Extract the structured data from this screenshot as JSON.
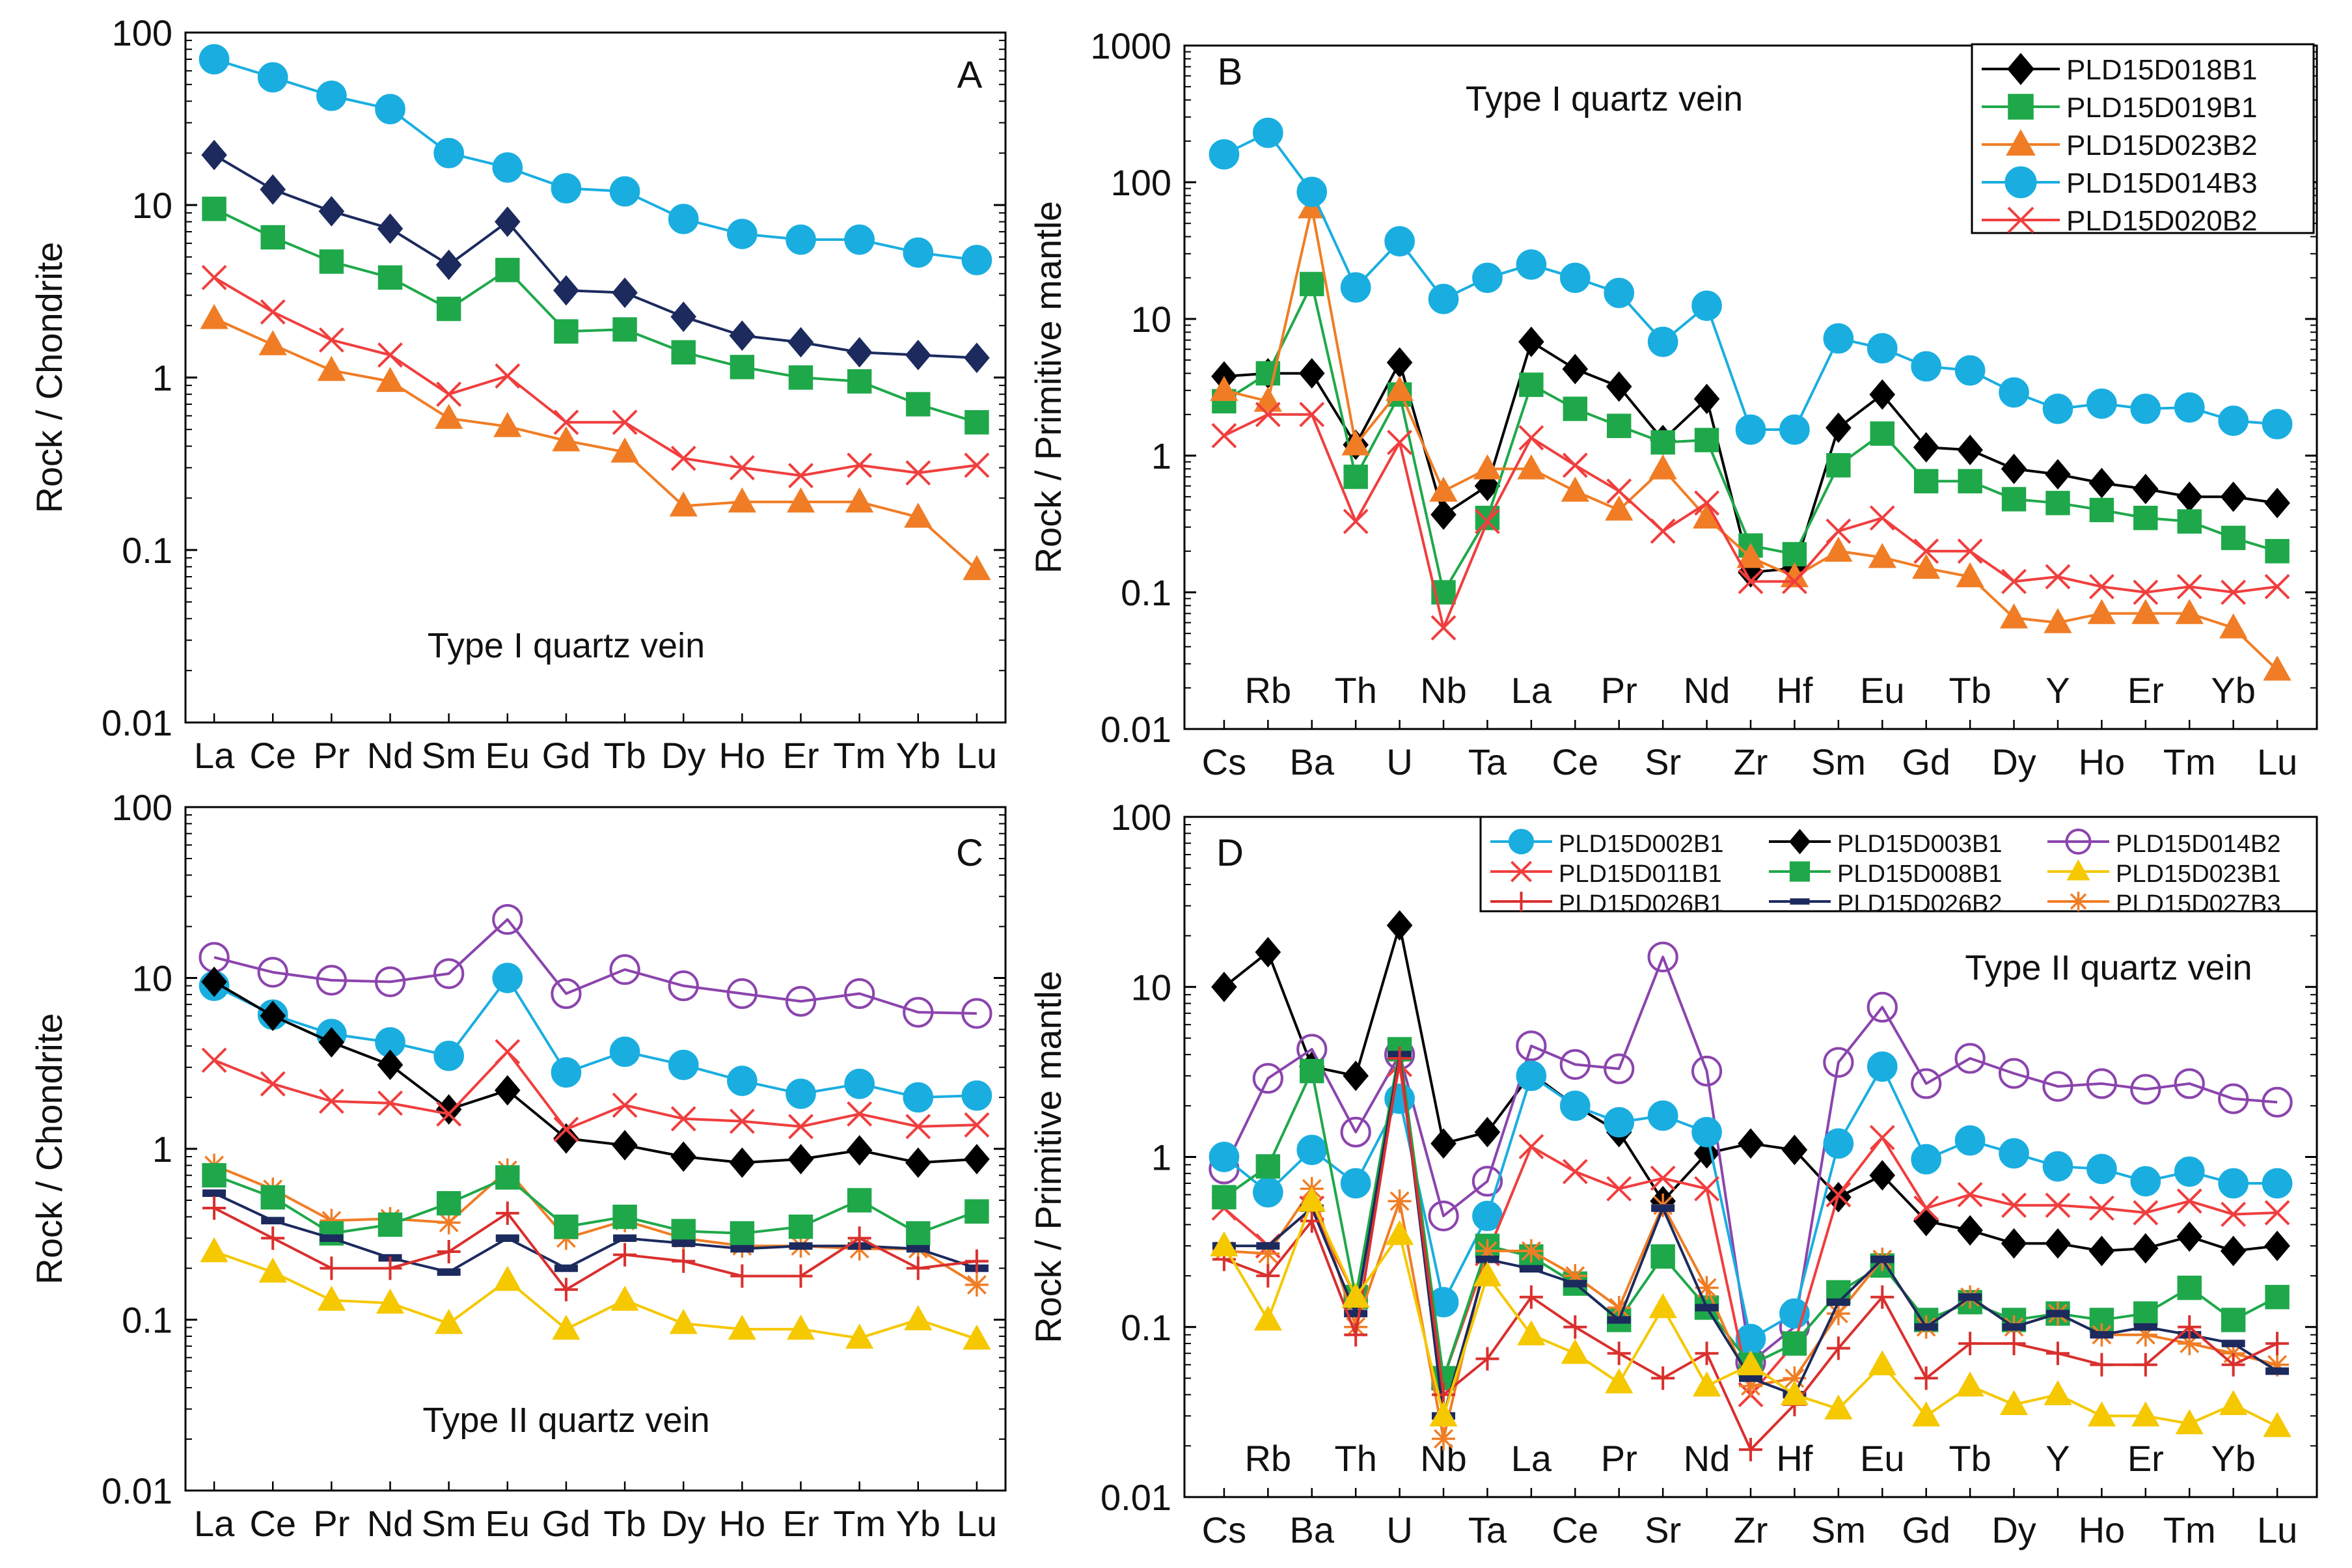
{
  "chart_data": [
    {
      "panel": "A",
      "type": "line",
      "scale": "log",
      "ylabel": "Rock / Chondrite",
      "ylim": [
        0.01,
        100
      ],
      "yticks": [
        "0.01",
        "0.1",
        "1",
        "10",
        "100"
      ],
      "note": "Type I quartz vein",
      "categories": [
        "La",
        "Ce",
        "Pr",
        "Nd",
        "Sm",
        "Eu",
        "Gd",
        "Tb",
        "Dy",
        "Ho",
        "Er",
        "Tm",
        "Yb",
        "Lu"
      ],
      "series": [
        {
          "name": "PLD15D014B3",
          "color": "#1aaee0",
          "marker": "circle",
          "values": [
            70,
            55,
            43,
            36,
            20,
            16.5,
            12.5,
            12,
            8.3,
            6.8,
            6.3,
            6.3,
            5.3,
            4.8
          ]
        },
        {
          "name": "PLD15D018B1",
          "color": "#1c2a5e",
          "marker": "diamond",
          "values": [
            19.5,
            12.3,
            9.2,
            7.3,
            4.5,
            8,
            3.2,
            3.1,
            2.25,
            1.75,
            1.6,
            1.4,
            1.35,
            1.3
          ]
        },
        {
          "name": "PLD15D019B1",
          "color": "#1fa84a",
          "marker": "square",
          "values": [
            9.5,
            6.5,
            4.7,
            3.8,
            2.5,
            4.2,
            1.85,
            1.9,
            1.4,
            1.15,
            1,
            0.95,
            0.7,
            0.55
          ]
        },
        {
          "name": "PLD15D020B2",
          "color": "#f03e3e",
          "marker": "x",
          "values": [
            3.8,
            2.4,
            1.65,
            1.35,
            0.8,
            1.02,
            0.55,
            0.55,
            0.34,
            0.3,
            0.27,
            0.31,
            0.28,
            0.31
          ]
        },
        {
          "name": "PLD15D023B2",
          "color": "#f07d25",
          "marker": "triangle",
          "values": [
            2.2,
            1.55,
            1.1,
            0.95,
            0.58,
            0.52,
            0.43,
            0.37,
            0.18,
            0.19,
            0.19,
            0.19,
            0.155,
            0.077
          ]
        }
      ]
    },
    {
      "panel": "B",
      "type": "line",
      "scale": "log",
      "ylabel": "Rock / Primitive mantle",
      "ylim": [
        0.01,
        1000
      ],
      "yticks": [
        "0.01",
        "0.1",
        "1",
        "10",
        "100",
        "1000"
      ],
      "note": "Type I quartz vein",
      "categories": [
        "Cs",
        "Rb",
        "Ba",
        "Th",
        "U",
        "Nb",
        "Ta",
        "La",
        "Ce",
        "Pr",
        "Sr",
        "Nd",
        "Zr",
        "Hf",
        "Sm",
        "Eu",
        "Gd",
        "Tb",
        "Dy",
        "Y",
        "Ho",
        "Er",
        "Tm",
        "Yb",
        "Lu"
      ],
      "bottom_labels": [
        "Cs",
        "Ba",
        "U",
        "Ta",
        "Ce",
        "Sr",
        "Zr",
        "Sm",
        "Gd",
        "Dy",
        "Ho",
        "Tm",
        "Lu"
      ],
      "inner_labels": [
        "Rb",
        "Th",
        "Nb",
        "La",
        "Pr",
        "Nd",
        "Hf",
        "Eu",
        "Tb",
        "Y",
        "Er",
        "Yb"
      ],
      "legend": [
        "PLD15D018B1",
        "PLD15D019B1",
        "PLD15D023B2",
        "PLD15D014B3",
        "PLD15D020B2"
      ],
      "series": [
        {
          "name": "PLD15D018B1",
          "color": "#000000",
          "marker": "diamond",
          "values": [
            3.8,
            4,
            4,
            1.2,
            4.8,
            0.37,
            0.6,
            6.8,
            4.3,
            3.2,
            1.3,
            2.6,
            0.14,
            0.15,
            1.6,
            2.8,
            1.15,
            1.1,
            0.8,
            0.73,
            0.63,
            0.57,
            0.5,
            0.5,
            0.45
          ]
        },
        {
          "name": "PLD15D019B1",
          "color": "#1fa84a",
          "marker": "square",
          "values": [
            2.5,
            4,
            18,
            0.7,
            2.8,
            0.1,
            0.35,
            3.3,
            2.2,
            1.65,
            1.25,
            1.3,
            0.22,
            0.19,
            0.85,
            1.45,
            0.65,
            0.65,
            0.48,
            0.45,
            0.4,
            0.35,
            0.33,
            0.25,
            0.2
          ]
        },
        {
          "name": "PLD15D023B2",
          "color": "#f07d25",
          "marker": "triangle",
          "values": [
            3,
            2.5,
            65,
            1.2,
            3,
            0.55,
            0.8,
            0.8,
            0.55,
            0.4,
            0.8,
            0.35,
            0.18,
            0.13,
            0.2,
            0.18,
            0.15,
            0.13,
            0.065,
            0.06,
            0.07,
            0.07,
            0.07,
            0.055,
            0.027
          ]
        },
        {
          "name": "PLD15D014B3",
          "color": "#1aaee0",
          "marker": "circle",
          "values": [
            160,
            230,
            85,
            17,
            37,
            14,
            20,
            25,
            20,
            15.5,
            6.8,
            12.5,
            1.55,
            1.55,
            7.2,
            6.1,
            4.5,
            4.2,
            2.9,
            2.2,
            2.4,
            2.2,
            2.25,
            1.8,
            1.7
          ]
        },
        {
          "name": "PLD15D020B2",
          "color": "#f03e3e",
          "marker": "x",
          "values": [
            1.4,
            2,
            2,
            0.33,
            1.25,
            0.055,
            0.33,
            1.35,
            0.85,
            0.55,
            0.28,
            0.45,
            0.12,
            0.12,
            0.28,
            0.35,
            0.2,
            0.2,
            0.12,
            0.13,
            0.11,
            0.1,
            0.11,
            0.1,
            0.11
          ]
        }
      ]
    },
    {
      "panel": "C",
      "type": "line",
      "scale": "log",
      "ylabel": "Rock / Chondrite",
      "ylim": [
        0.01,
        100
      ],
      "yticks": [
        "0.01",
        "0.1",
        "1",
        "10",
        "100"
      ],
      "note": "Type II quartz vein",
      "categories": [
        "La",
        "Ce",
        "Pr",
        "Nd",
        "Sm",
        "Eu",
        "Gd",
        "Tb",
        "Dy",
        "Ho",
        "Er",
        "Tm",
        "Yb",
        "Lu"
      ],
      "series": [
        {
          "name": "PLD15D014B2",
          "color": "#8b44ad",
          "marker": "circle-open",
          "values": [
            13.2,
            10.8,
            9.7,
            9.5,
            10.6,
            22,
            8.1,
            11.2,
            9,
            8.1,
            7.3,
            8.1,
            6.3,
            6.2
          ]
        },
        {
          "name": "PLD15D002B1",
          "color": "#1aaee0",
          "marker": "circle",
          "values": [
            9,
            6.1,
            4.7,
            4.2,
            3.5,
            10,
            2.8,
            3.7,
            3.1,
            2.5,
            2.1,
            2.4,
            2,
            2.05
          ]
        },
        {
          "name": "PLD15D003B1",
          "color": "#000000",
          "marker": "diamond",
          "values": [
            9.5,
            6,
            4.2,
            3.1,
            1.7,
            2.2,
            1.15,
            1.05,
            0.9,
            0.83,
            0.87,
            0.98,
            0.83,
            0.87
          ]
        },
        {
          "name": "PLD15D011B1",
          "color": "#f03e3e",
          "marker": "x",
          "values": [
            3.3,
            2.4,
            1.9,
            1.85,
            1.6,
            3.7,
            1.3,
            1.8,
            1.5,
            1.45,
            1.35,
            1.6,
            1.35,
            1.38
          ]
        },
        {
          "name": "PLD15D027B3",
          "color": "#f07d25",
          "marker": "star",
          "values": [
            0.8,
            0.58,
            0.38,
            0.39,
            0.37,
            0.75,
            0.3,
            0.38,
            0.3,
            0.27,
            0.27,
            0.26,
            0.26,
            0.16
          ]
        },
        {
          "name": "PLD15D008B1",
          "color": "#1fa84a",
          "marker": "square",
          "values": [
            0.7,
            0.52,
            0.32,
            0.36,
            0.48,
            0.68,
            0.35,
            0.4,
            0.33,
            0.32,
            0.35,
            0.5,
            0.32,
            0.43
          ]
        },
        {
          "name": "PLD15D026B2",
          "color": "#1c2a5e",
          "marker": "dash",
          "values": [
            0.55,
            0.38,
            0.3,
            0.23,
            0.19,
            0.3,
            0.2,
            0.3,
            0.28,
            0.26,
            0.27,
            0.27,
            0.26,
            0.2
          ]
        },
        {
          "name": "PLD15D026B1",
          "color": "#d9302e",
          "marker": "plus",
          "values": [
            0.45,
            0.3,
            0.2,
            0.2,
            0.25,
            0.42,
            0.15,
            0.24,
            0.22,
            0.18,
            0.18,
            0.3,
            0.2,
            0.22
          ]
        },
        {
          "name": "PLD15D023B1",
          "color": "#f5c800",
          "marker": "triangle",
          "values": [
            0.25,
            0.19,
            0.13,
            0.125,
            0.095,
            0.17,
            0.088,
            0.13,
            0.095,
            0.088,
            0.088,
            0.078,
            0.1,
            0.077
          ]
        }
      ]
    },
    {
      "panel": "D",
      "type": "line",
      "scale": "log",
      "ylabel": "Rock / Primitive mantle",
      "ylim": [
        0.01,
        100
      ],
      "yticks": [
        "0.01",
        "0.1",
        "1",
        "10",
        "100"
      ],
      "note": "Type II quartz vein",
      "categories": [
        "Cs",
        "Rb",
        "Ba",
        "Th",
        "U",
        "Nb",
        "Ta",
        "La",
        "Ce",
        "Pr",
        "Sr",
        "Nd",
        "Zr",
        "Hf",
        "Sm",
        "Eu",
        "Gd",
        "Tb",
        "Dy",
        "Y",
        "Ho",
        "Er",
        "Tm",
        "Yb",
        "Lu"
      ],
      "bottom_labels": [
        "Cs",
        "Ba",
        "U",
        "Ta",
        "Ce",
        "Sr",
        "Zr",
        "Sm",
        "Gd",
        "Dy",
        "Ho",
        "Tm",
        "Lu"
      ],
      "inner_labels": [
        "Rb",
        "Th",
        "Nb",
        "La",
        "Pr",
        "Nd",
        "Hf",
        "Eu",
        "Tb",
        "Y",
        "Er",
        "Yb"
      ],
      "legend": [
        "PLD15D002B1",
        "PLD15D003B1",
        "PLD15D014B2",
        "PLD15D011B1",
        "PLD15D008B1",
        "PLD15D023B1",
        "PLD15D026B1",
        "PLD15D026B2",
        "PLD15D027B3"
      ],
      "series": [
        {
          "name": "PLD15D003B1",
          "color": "#000000",
          "marker": "diamond",
          "values": [
            10,
            16,
            3.4,
            3,
            23,
            1.2,
            1.4,
            3.1,
            2,
            1.4,
            0.55,
            1.05,
            1.2,
            1.1,
            0.58,
            0.78,
            0.42,
            0.37,
            0.31,
            0.31,
            0.28,
            0.29,
            0.34,
            0.28,
            0.3
          ]
        },
        {
          "name": "PLD15D014B2",
          "color": "#8b44ad",
          "marker": "circle-open",
          "values": [
            0.85,
            2.9,
            4.3,
            1.4,
            4,
            0.45,
            0.72,
            4.5,
            3.5,
            3.3,
            15,
            3.2,
            0.062,
            0.1,
            3.6,
            7.6,
            2.7,
            3.8,
            3.1,
            2.6,
            2.7,
            2.5,
            2.7,
            2.2,
            2.1
          ]
        },
        {
          "name": "PLD15D002B1",
          "color": "#1aaee0",
          "marker": "circle",
          "values": [
            1,
            0.62,
            1.1,
            0.7,
            2.2,
            0.14,
            0.45,
            3,
            2,
            1.6,
            1.75,
            1.4,
            0.085,
            0.12,
            1.2,
            3.4,
            0.97,
            1.25,
            1.05,
            0.88,
            0.85,
            0.72,
            0.82,
            0.7,
            0.7
          ]
        },
        {
          "name": "PLD15D011B1",
          "color": "#f03e3e",
          "marker": "x",
          "values": [
            0.5,
            0.3,
            0.5,
            0.15,
            3.5,
            0.05,
            0.27,
            1.15,
            0.82,
            0.65,
            0.75,
            0.65,
            0.04,
            0.08,
            0.6,
            1.3,
            0.5,
            0.6,
            0.52,
            0.52,
            0.5,
            0.47,
            0.55,
            0.46,
            0.47
          ]
        },
        {
          "name": "PLD15D008B1",
          "color": "#1fa84a",
          "marker": "square",
          "values": [
            0.58,
            0.88,
            3.2,
            0.15,
            4.3,
            0.05,
            0.3,
            0.26,
            0.18,
            0.11,
            0.26,
            0.13,
            0.06,
            0.08,
            0.16,
            0.23,
            0.11,
            0.14,
            0.11,
            0.12,
            0.11,
            0.12,
            0.17,
            0.11,
            0.15
          ]
        },
        {
          "name": "PLD15D027B3",
          "color": "#f07d25",
          "marker": "star",
          "values": [
            0.28,
            0.27,
            0.65,
            0.1,
            0.55,
            0.022,
            0.28,
            0.28,
            0.2,
            0.13,
            0.52,
            0.17,
            0.045,
            0.05,
            0.12,
            0.25,
            0.1,
            0.15,
            0.1,
            0.12,
            0.09,
            0.09,
            0.08,
            0.07,
            0.06
          ]
        },
        {
          "name": "PLD15D026B2",
          "color": "#1c2a5e",
          "marker": "dash",
          "values": [
            0.3,
            0.3,
            0.5,
            0.12,
            4,
            0.03,
            0.25,
            0.22,
            0.18,
            0.11,
            0.5,
            0.13,
            0.05,
            0.04,
            0.14,
            0.25,
            0.1,
            0.15,
            0.1,
            0.12,
            0.09,
            0.1,
            0.09,
            0.08,
            0.055
          ]
        },
        {
          "name": "PLD15D026B1",
          "color": "#d9302e",
          "marker": "plus",
          "values": [
            0.25,
            0.2,
            0.42,
            0.09,
            3.8,
            0.04,
            0.065,
            0.15,
            0.1,
            0.07,
            0.05,
            0.07,
            0.019,
            0.035,
            0.075,
            0.15,
            0.05,
            0.08,
            0.08,
            0.07,
            0.06,
            0.06,
            0.1,
            0.06,
            0.08
          ]
        },
        {
          "name": "PLD15D023B1",
          "color": "#f5c800",
          "marker": "triangle",
          "values": [
            0.3,
            0.11,
            0.55,
            0.15,
            0.35,
            0.03,
            0.2,
            0.09,
            0.07,
            0.047,
            0.13,
            0.045,
            0.06,
            0.04,
            0.033,
            0.06,
            0.03,
            0.045,
            0.035,
            0.04,
            0.03,
            0.03,
            0.027,
            0.035,
            0.026
          ]
        }
      ]
    }
  ]
}
